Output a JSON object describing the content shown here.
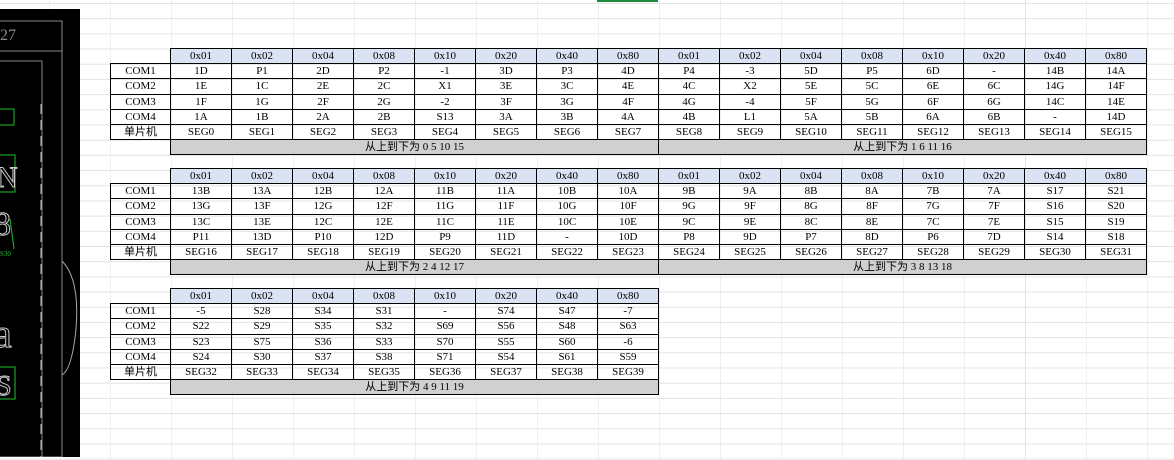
{
  "headers": [
    "0x01",
    "0x02",
    "0x04",
    "0x08",
    "0x10",
    "0x20",
    "0x40",
    "0x80",
    "0x01",
    "0x02",
    "0x04",
    "0x08",
    "0x10",
    "0x20",
    "0x40",
    "0x80"
  ],
  "row_labels": [
    "COM1",
    "COM2",
    "COM3",
    "COM4",
    "单片机"
  ],
  "cad_labels": [
    "27",
    "S30"
  ],
  "tables": [
    {
      "rows": [
        [
          "1D",
          "P1",
          "2D",
          "P2",
          "-1",
          "3D",
          "P3",
          "4D",
          "P4",
          "-3",
          "5D",
          "P5",
          "6D",
          "-",
          "14B",
          "14A"
        ],
        [
          "1E",
          "1C",
          "2E",
          "2C",
          "X1",
          "3E",
          "3C",
          "4E",
          "4C",
          "X2",
          "5E",
          "5C",
          "6E",
          "6C",
          "14G",
          "14F"
        ],
        [
          "1F",
          "1G",
          "2F",
          "2G",
          "-2",
          "3F",
          "3G",
          "4F",
          "4G",
          "-4",
          "5F",
          "5G",
          "6F",
          "6G",
          "14C",
          "14E"
        ],
        [
          "1A",
          "1B",
          "2A",
          "2B",
          "S13",
          "3A",
          "3B",
          "4A",
          "4B",
          "L1",
          "5A",
          "5B",
          "6A",
          "6B",
          "-",
          "14D"
        ],
        [
          "SEG0",
          "SEG1",
          "SEG2",
          "SEG3",
          "SEG4",
          "SEG5",
          "SEG6",
          "SEG7",
          "SEG8",
          "SEG9",
          "SEG10",
          "SEG11",
          "SEG12",
          "SEG13",
          "SEG14",
          "SEG15"
        ]
      ],
      "footers": [
        "从上到下为 0 5 10 15",
        "从上到下为 1 6 11 16"
      ]
    },
    {
      "rows": [
        [
          "13B",
          "13A",
          "12B",
          "12A",
          "11B",
          "11A",
          "10B",
          "10A",
          "9B",
          "9A",
          "8B",
          "8A",
          "7B",
          "7A",
          "S17",
          "S21"
        ],
        [
          "13G",
          "13F",
          "12G",
          "12F",
          "11G",
          "11F",
          "10G",
          "10F",
          "9G",
          "9F",
          "8G",
          "8F",
          "7G",
          "7F",
          "S16",
          "S20"
        ],
        [
          "13C",
          "13E",
          "12C",
          "12E",
          "11C",
          "11E",
          "10C",
          "10E",
          "9C",
          "9E",
          "8C",
          "8E",
          "7C",
          "7E",
          "S15",
          "S19"
        ],
        [
          "P11",
          "13D",
          "P10",
          "12D",
          "P9",
          "11D",
          "-",
          "10D",
          "P8",
          "9D",
          "P7",
          "8D",
          "P6",
          "7D",
          "S14",
          "S18"
        ],
        [
          "SEG16",
          "SEG17",
          "SEG18",
          "SEG19",
          "SEG20",
          "SEG21",
          "SEG22",
          "SEG23",
          "SEG24",
          "SEG25",
          "SEG26",
          "SEG27",
          "SEG28",
          "SEG29",
          "SEG30",
          "SEG31"
        ]
      ],
      "footers": [
        "从上到下为 2 4 12 17",
        "从上到下为 3 8 13 18"
      ]
    },
    {
      "rows": [
        [
          "-5",
          "S28",
          "S34",
          "S31",
          "-",
          "S74",
          "S47",
          "-7"
        ],
        [
          "S22",
          "S29",
          "S35",
          "S32",
          "S69",
          "S56",
          "S48",
          "S63"
        ],
        [
          "S23",
          "S75",
          "S36",
          "S33",
          "S70",
          "S55",
          "S60",
          "-6"
        ],
        [
          "S24",
          "S30",
          "S37",
          "S38",
          "S71",
          "S54",
          "S61",
          "S59"
        ],
        [
          "SEG32",
          "SEG33",
          "SEG34",
          "SEG35",
          "SEG36",
          "SEG37",
          "SEG38",
          "SEG39"
        ]
      ],
      "footers": [
        "从上到下为 4 9 11 19"
      ]
    }
  ],
  "colors": {
    "header_bg": "#dae3f3",
    "footer_bg": "#d0d0d0",
    "cad_bg": "#000000",
    "cad_green": "#1fbf2f",
    "selection": "#1e8a3c"
  }
}
